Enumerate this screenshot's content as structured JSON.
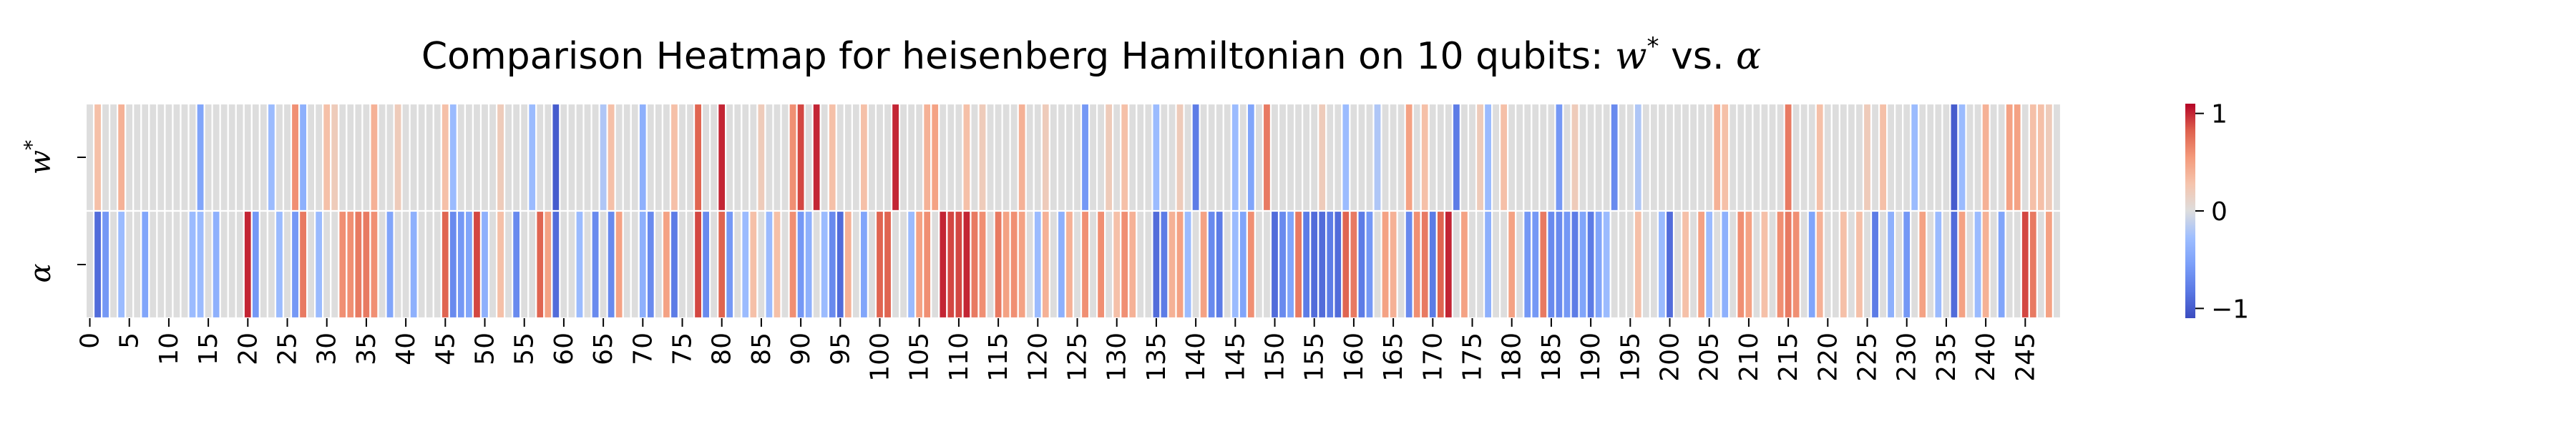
{
  "chart_data": {
    "type": "heatmap",
    "title_prefix": "Comparison Heatmap for heisenberg Hamiltonian on 10 qubits: ",
    "title_w": "w",
    "title_star": "*",
    "title_mid": " vs. ",
    "title_alpha": "α",
    "rows": [
      "w*",
      "α"
    ],
    "row_w_base": "w",
    "row_w_sup": "*",
    "row_alpha": "α",
    "n_cols": 250,
    "x_tick_step": 5,
    "x_ticks": [
      "0",
      "5",
      "10",
      "15",
      "20",
      "25",
      "30",
      "35",
      "40",
      "45",
      "50",
      "55",
      "60",
      "65",
      "70",
      "75",
      "80",
      "85",
      "90",
      "95",
      "100",
      "105",
      "110",
      "115",
      "120",
      "125",
      "130",
      "135",
      "140",
      "145",
      "150",
      "155",
      "160",
      "165",
      "170",
      "175",
      "180",
      "185",
      "190",
      "195",
      "200",
      "205",
      "210",
      "215",
      "220",
      "225",
      "230",
      "235",
      "240",
      "245"
    ],
    "colormap": "coolwarm",
    "vmin": -1.1,
    "vmax": 1.1,
    "colorbar_ticks": [
      {
        "value": 1,
        "label": "1"
      },
      {
        "value": 0,
        "label": "0"
      },
      {
        "value": -1,
        "label": "−1"
      }
    ],
    "w_star_nonzero": {
      "1": 0.3,
      "4": 0.4,
      "14": -0.5,
      "23": -0.3,
      "26": 0.6,
      "27": -0.4,
      "30": 0.3,
      "31": 0.2,
      "36": 0.4,
      "39": 0.2,
      "45": 0.3,
      "46": -0.3,
      "52": 0.2,
      "56": -0.3,
      "59": -1.0,
      "65": -0.2,
      "66": 0.3,
      "70": -0.4,
      "74": 0.3,
      "77": 0.8,
      "80": 1.0,
      "85": 0.2,
      "89": 0.6,
      "90": 0.9,
      "92": 1.0,
      "94": 0.3,
      "98": 0.3,
      "102": 1.0,
      "106": 0.4,
      "107": 0.5,
      "111": 0.3,
      "113": 0.2,
      "118": 0.4,
      "121": 0.2,
      "126": -0.6,
      "129": 0.2,
      "131": 0.3,
      "135": -0.3,
      "138": 0.2,
      "140": -0.8,
      "145": -0.3,
      "147": -0.5,
      "149": 0.7,
      "156": 0.2,
      "159": -0.3,
      "163": -0.2,
      "167": 0.5,
      "169": 0.3,
      "173": -0.8,
      "176": 0.2,
      "177": -0.3,
      "179": 0.3,
      "186": -0.6,
      "188": 0.2,
      "193": -0.7,
      "196": -0.2,
      "206": 0.4,
      "207": 0.3,
      "215": 0.7,
      "219": 0.3,
      "225": 0.2,
      "227": 0.3,
      "231": -0.3,
      "236": -1.0,
      "237": -0.3,
      "240": 0.4,
      "243": 0.5,
      "244": 0.5,
      "246": 0.3,
      "247": 0.3,
      "248": 0.2
    },
    "alpha_nonzero": {
      "1": -0.9,
      "2": -0.6,
      "4": -0.3,
      "7": -0.5,
      "13": -0.3,
      "14": -0.3,
      "16": -0.4,
      "20": 1.0,
      "21": -0.6,
      "24": -0.3,
      "26": -0.6,
      "27": 0.7,
      "29": -0.3,
      "32": 0.6,
      "33": 0.6,
      "34": 0.7,
      "35": 0.7,
      "36": 0.6,
      "38": -0.5,
      "41": -0.4,
      "45": 0.8,
      "46": -0.7,
      "47": -0.6,
      "48": -0.5,
      "49": 0.9,
      "50": -0.4,
      "52": 0.3,
      "54": -0.7,
      "57": 0.8,
      "58": 0.5,
      "59": -0.9,
      "62": -0.3,
      "64": -0.7,
      "66": -0.7,
      "67": 0.5,
      "70": -0.4,
      "71": -0.7,
      "73": 0.5,
      "74": -0.8,
      "77": 0.9,
      "78": -0.7,
      "80": 0.8,
      "81": -0.6,
      "83": -0.3,
      "84": 0.3,
      "86": -0.3,
      "87": 0.3,
      "89": 0.6,
      "90": -0.6,
      "91": -0.4,
      "93": -0.3,
      "94": -0.7,
      "95": -0.9,
      "96": 0.4,
      "98": -0.5,
      "100": 0.8,
      "101": 0.8,
      "104": -0.3,
      "105": 0.5,
      "106": 0.6,
      "108": 1.0,
      "109": 0.9,
      "110": 0.9,
      "111": 1.0,
      "112": 0.7,
      "113": 0.6,
      "115": 0.7,
      "116": 0.5,
      "117": 0.6,
      "118": 0.5,
      "120": -0.3,
      "121": 0.4,
      "123": -0.4,
      "124": 0.4,
      "126": 0.6,
      "128": 0.6,
      "130": 0.3,
      "131": 0.6,
      "132": 0.4,
      "135": -0.9,
      "136": -0.8,
      "137": 0.4,
      "138": 0.5,
      "139": -0.3,
      "141": 0.5,
      "142": -0.7,
      "143": -0.8,
      "145": -0.3,
      "146": -0.5,
      "147": 0.6,
      "150": -0.9,
      "151": -0.7,
      "152": -0.5,
      "153": 0.7,
      "154": -0.8,
      "155": -0.9,
      "156": -0.9,
      "157": -0.8,
      "158": -0.9,
      "159": 0.8,
      "160": 0.7,
      "161": -0.8,
      "162": -0.6,
      "164": 0.5,
      "165": 0.4,
      "167": -0.7,
      "168": 0.6,
      "169": 0.7,
      "170": -0.8,
      "171": 0.8,
      "172": 1.0,
      "174": 0.5,
      "177": -0.4,
      "180": 0.5,
      "182": -0.6,
      "183": -0.6,
      "184": 0.7,
      "185": -0.7,
      "186": -0.7,
      "187": -0.6,
      "188": -0.8,
      "189": -0.5,
      "190": -0.8,
      "191": -0.5,
      "192": -0.3,
      "196": 0.3,
      "199": -0.3,
      "200": -0.9,
      "202": 0.3,
      "204": 0.5,
      "205": -0.3,
      "207": -0.4,
      "209": 0.6,
      "210": 0.5,
      "212": 0.3,
      "214": 0.6,
      "215": 0.7,
      "216": 0.6,
      "218": -0.5,
      "219": 0.4,
      "222": 0.3,
      "224": 0.3,
      "226": -0.8,
      "228": -0.4,
      "230": -0.6,
      "232": 0.5,
      "234": -0.3,
      "236": -0.9,
      "237": 0.5,
      "239": -0.3,
      "240": 0.4,
      "242": -0.5,
      "245": 0.9,
      "246": 0.7,
      "248": 0.5
    }
  }
}
